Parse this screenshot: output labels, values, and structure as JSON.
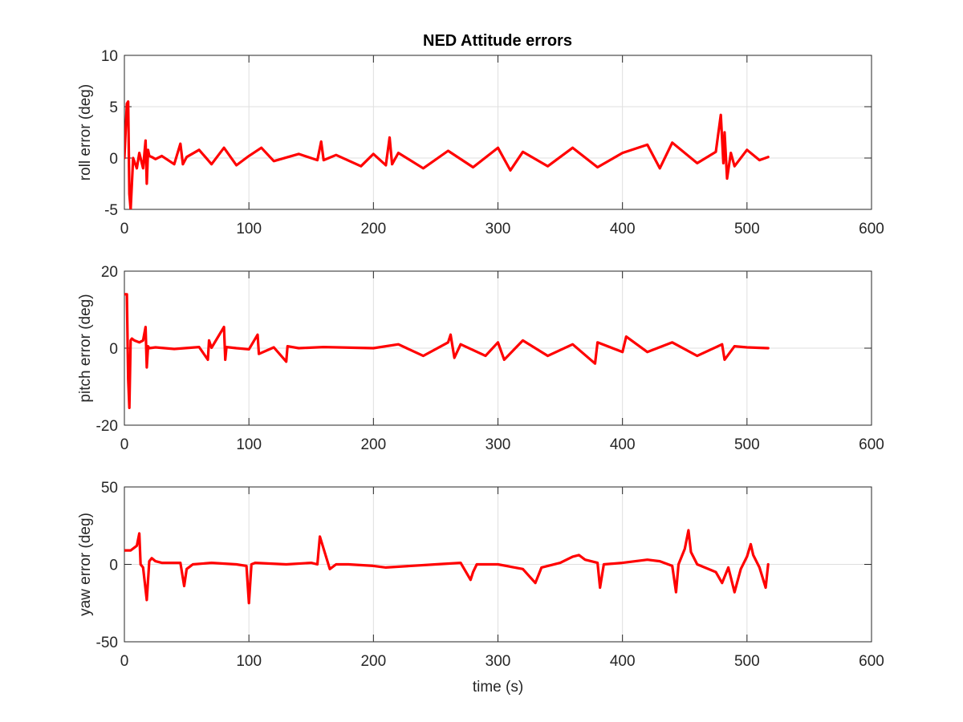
{
  "figure": {
    "title": "NED Attitude errors"
  },
  "chart_data": [
    {
      "type": "line",
      "title": "NED Attitude errors",
      "xlabel": "",
      "ylabel": "roll error (deg)",
      "xlim": [
        0,
        600
      ],
      "ylim": [
        -5,
        10
      ],
      "xticks": [
        0,
        100,
        200,
        300,
        400,
        500,
        600
      ],
      "yticks": [
        -5,
        0,
        5,
        10
      ],
      "grid": true,
      "series_color": "#ff0000",
      "x": [
        0,
        2,
        3,
        4,
        5,
        7,
        10,
        12,
        15,
        17,
        18,
        19,
        20,
        22,
        25,
        30,
        40,
        45,
        47,
        50,
        60,
        70,
        80,
        90,
        100,
        110,
        120,
        140,
        155,
        158,
        160,
        170,
        190,
        200,
        210,
        213,
        215,
        220,
        240,
        260,
        280,
        300,
        310,
        320,
        340,
        360,
        380,
        400,
        420,
        430,
        440,
        460,
        475,
        479,
        481,
        482,
        484,
        487,
        490,
        500,
        510,
        517
      ],
      "values": [
        0,
        5.3,
        5.5,
        -3.5,
        -5,
        0,
        -1,
        0.5,
        -1,
        1.7,
        -2.5,
        0.8,
        0.2,
        0.1,
        -0.1,
        0.2,
        -0.6,
        1.4,
        -0.6,
        0.1,
        0.8,
        -0.6,
        1.0,
        -0.7,
        0.2,
        1.0,
        -0.3,
        0.4,
        -0.2,
        1.6,
        -0.2,
        0.3,
        -0.8,
        0.4,
        -0.7,
        2.0,
        -0.6,
        0.5,
        -1.0,
        0.7,
        -0.9,
        1.0,
        -1.2,
        0.6,
        -0.8,
        1.0,
        -0.9,
        0.5,
        1.3,
        -1.0,
        1.5,
        -0.5,
        0.6,
        4.2,
        -0.5,
        2.5,
        -2.0,
        0.5,
        -0.8,
        0.8,
        -0.2,
        0.1
      ]
    },
    {
      "type": "line",
      "xlabel": "",
      "ylabel": "pitch error (deg)",
      "xlim": [
        0,
        600
      ],
      "ylim": [
        -20,
        20
      ],
      "xticks": [
        0,
        100,
        200,
        300,
        400,
        500,
        600
      ],
      "yticks": [
        -20,
        0,
        20
      ],
      "grid": true,
      "series_color": "#ff0000",
      "x": [
        0,
        2,
        3,
        4,
        5,
        6,
        8,
        12,
        15,
        17,
        18,
        19,
        20,
        25,
        40,
        60,
        67,
        68,
        70,
        80,
        81,
        82,
        90,
        100,
        107,
        108,
        120,
        130,
        131,
        140,
        160,
        200,
        220,
        240,
        260,
        262,
        265,
        270,
        290,
        300,
        305,
        320,
        340,
        360,
        378,
        380,
        400,
        403,
        420,
        440,
        460,
        480,
        482,
        490,
        500,
        517
      ],
      "values": [
        14,
        14,
        -8,
        -15.5,
        2,
        2.5,
        2,
        1.5,
        2,
        5.5,
        -5,
        0.5,
        0,
        0.2,
        -0.2,
        0.3,
        -3,
        2,
        0.1,
        5.5,
        -3,
        0.3,
        0,
        -0.3,
        3.5,
        -1.5,
        0.2,
        -3.5,
        0.5,
        0,
        0.3,
        0,
        1,
        -2,
        1.5,
        3.5,
        -2.5,
        1,
        -2,
        1.5,
        -3,
        2,
        -2,
        1,
        -4,
        1.5,
        -1,
        3,
        -1,
        1.5,
        -2,
        1,
        -3,
        0.5,
        0.2,
        0
      ]
    },
    {
      "type": "line",
      "xlabel": "time (s)",
      "ylabel": "yaw error (deg)",
      "xlim": [
        0,
        600
      ],
      "ylim": [
        -50,
        50
      ],
      "xticks": [
        0,
        100,
        200,
        300,
        400,
        500,
        600
      ],
      "yticks": [
        -50,
        0,
        50
      ],
      "grid": true,
      "series_color": "#ff0000",
      "x": [
        0,
        5,
        10,
        12,
        13,
        15,
        18,
        20,
        22,
        25,
        30,
        45,
        48,
        50,
        55,
        70,
        90,
        98,
        100,
        102,
        105,
        130,
        150,
        155,
        157,
        160,
        165,
        170,
        180,
        200,
        210,
        250,
        270,
        278,
        280,
        283,
        300,
        320,
        330,
        335,
        350,
        360,
        365,
        370,
        380,
        382,
        385,
        400,
        420,
        430,
        440,
        443,
        445,
        450,
        453,
        455,
        460,
        475,
        480,
        485,
        490,
        495,
        500,
        503,
        505,
        510,
        515,
        517
      ],
      "values": [
        9,
        9,
        12,
        20,
        0,
        -2,
        -23,
        2,
        4,
        2,
        1,
        1,
        -14,
        -3,
        0,
        1,
        0,
        -1,
        -25,
        0,
        1,
        0,
        1,
        0,
        18,
        10,
        -3,
        0,
        0,
        -1,
        -2,
        0,
        1,
        -10,
        -5,
        0,
        0,
        -3,
        -12,
        -2,
        1,
        5,
        6,
        3,
        1,
        -15,
        0,
        1,
        3,
        2,
        -1,
        -18,
        0,
        10,
        22,
        8,
        0,
        -5,
        -12,
        -2,
        -18,
        -3,
        5,
        13,
        6,
        -2,
        -15,
        0
      ]
    }
  ]
}
